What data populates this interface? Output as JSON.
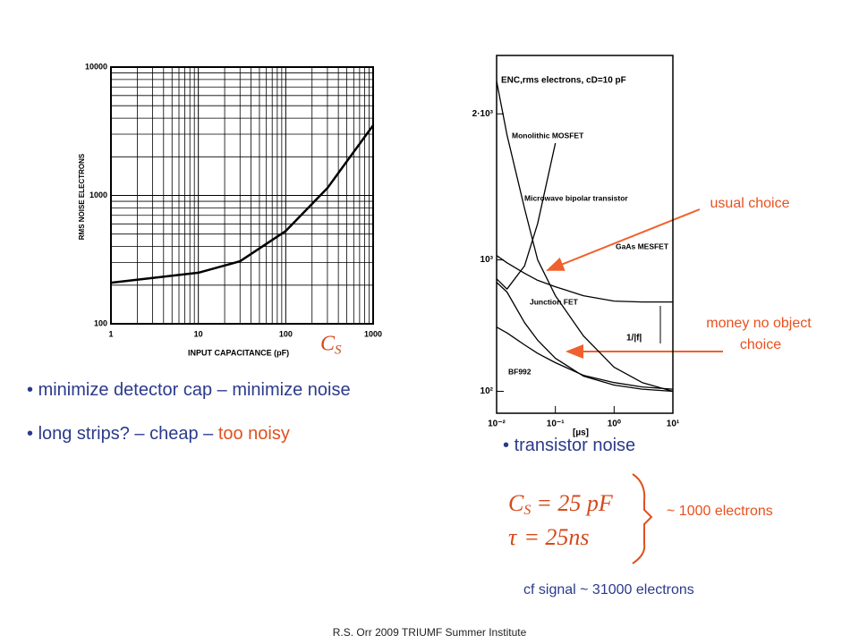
{
  "chart_data": [
    {
      "type": "line",
      "xscale": "log",
      "yscale": "log",
      "grid": true,
      "xlabel": "INPUT CAPACITANCE (pF)",
      "ylabel": "RMS NOISE ELECTRONS",
      "xlim": [
        1,
        1000
      ],
      "ylim": [
        100,
        10000
      ],
      "xticks": [
        1,
        10,
        100,
        1000
      ],
      "yticks": [
        100,
        1000,
        10000
      ],
      "x": [
        1,
        10,
        30,
        100,
        300,
        1000
      ],
      "series": [
        {
          "color": "#000000",
          "values": [
            209,
            250,
            307,
            528,
            1140,
            3520
          ]
        }
      ]
    },
    {
      "type": "line",
      "xscale": "log",
      "yscale": "linear",
      "grid": false,
      "title": "ENC,rms electrons, cD=10 pF",
      "xlabel": "[µs]",
      "annotation": "1/|f|",
      "xlim": [
        0.01,
        10
      ],
      "ylim": [
        -50,
        2400
      ],
      "xticks": [
        {
          "value": 0.01,
          "label": "10⁻²"
        },
        {
          "value": 0.1,
          "label": "10⁻¹"
        },
        {
          "value": 1,
          "label": "10⁰"
        },
        {
          "value": 10,
          "label": "10¹"
        }
      ],
      "yticks": [
        {
          "value": 100,
          "label": "10²"
        },
        {
          "value": 1000,
          "label": "10³"
        },
        {
          "value": 2000,
          "label": "2·10³"
        }
      ],
      "x": [
        0.01,
        0.015,
        0.03,
        0.05,
        0.1,
        0.3,
        1,
        3,
        10
      ],
      "series": [
        {
          "name": "Monolithic MOSFET",
          "color": "#000000",
          "values": [
            2224,
            1856,
            1350,
            1000,
            755,
            480,
            265,
            160,
            100
          ]
        },
        {
          "name": "Microwave bipolar transistor",
          "color": "#000000",
          "values": [
            870,
            800,
            960,
            1250,
            1800,
            null,
            null,
            null,
            null
          ]
        },
        {
          "name": "GaAs MESFET",
          "color": "#000000",
          "values": [
            1030,
            980,
            908,
            860,
            816,
            755,
            718,
            712,
            712
          ]
        },
        {
          "name": "Junction FET",
          "color": "#000000",
          "values": [
            847,
            780,
            570,
            450,
            326,
            204,
            143,
            115,
            100
          ]
        },
        {
          "name": "BF992",
          "color": "#000000",
          "values": [
            540,
            500,
            418,
            360,
            296,
            210,
            160,
            130,
            115
          ]
        }
      ]
    }
  ],
  "cs_label": {
    "symbol": "C",
    "subscript": "S"
  },
  "bullets": [
    [
      "minimize  detector cap – minimize noise"
    ],
    [
      "long strips? – cheap – ",
      "too noisy"
    ],
    [
      "transistor noise"
    ]
  ],
  "callouts": [
    "usual choice",
    "money no object",
    "choice"
  ],
  "formulas": [
    {
      "symbol": "C",
      "subscript": "S",
      "rest": "= 25 pF"
    },
    {
      "symbol": "τ",
      "rest": "= 25ns"
    }
  ],
  "result": "~ 1000 electrons",
  "signal": "cf signal ~ 31000 electrons",
  "footer": "R.S. Orr 2009 TRIUMF Summer Institute"
}
